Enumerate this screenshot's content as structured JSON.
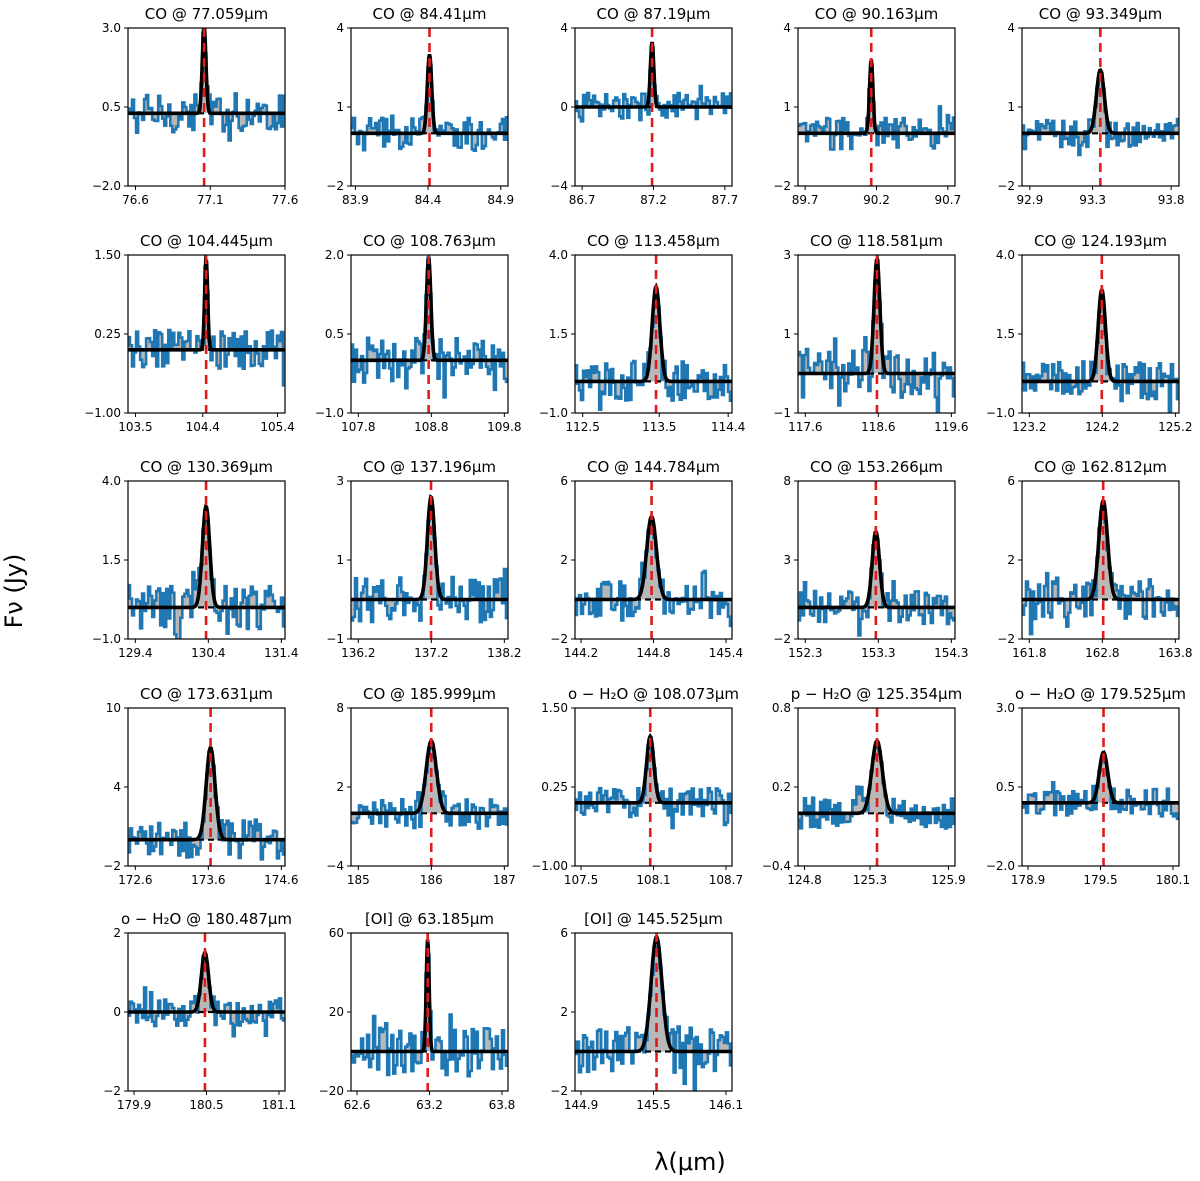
{
  "figure": {
    "ylabel": "Fν (Jy)",
    "xlabel": "λ(μm)"
  },
  "colors": {
    "spectrum": "#1f77b4",
    "fit": "#000000",
    "line_center": "#e31a1c",
    "continuum": "#000000",
    "fill": "#b8b8b8"
  },
  "chart_data": [
    {
      "type": "line",
      "title": "CO @ 77.059μm",
      "species": "CO",
      "center": 77.059,
      "xticks": [
        "76.6",
        "77.1",
        "77.6"
      ],
      "xlim": [
        76.55,
        77.6
      ],
      "yticks": [
        "3.0",
        "0.5",
        "−2.0"
      ],
      "ylim": [
        -2.0,
        3.0
      ],
      "baseline": 0.3,
      "peak": 2.8,
      "sigma": 0.012,
      "series": [
        {
          "values": []
        }
      ]
    },
    {
      "type": "line",
      "title": "CO @ 84.41μm",
      "species": "CO",
      "center": 84.41,
      "xticks": [
        "83.9",
        "84.4",
        "84.9"
      ],
      "xlim": [
        83.87,
        84.95
      ],
      "yticks": [
        "4",
        "1",
        "−2"
      ],
      "ylim": [
        -2,
        4
      ],
      "baseline": 0.0,
      "peak": 3.0,
      "sigma": 0.015,
      "series": [
        {
          "values": []
        }
      ]
    },
    {
      "type": "line",
      "title": "CO @ 87.19μm",
      "species": "CO",
      "center": 87.19,
      "xticks": [
        "86.7",
        "87.2",
        "87.7"
      ],
      "xlim": [
        86.65,
        87.75
      ],
      "yticks": [
        "4",
        "0",
        "−4"
      ],
      "ylim": [
        -4,
        4
      ],
      "baseline": 0.0,
      "peak": 3.3,
      "sigma": 0.012,
      "series": [
        {
          "values": []
        }
      ]
    },
    {
      "type": "line",
      "title": "CO @ 90.163μm",
      "species": "CO",
      "center": 90.163,
      "xticks": [
        "89.7",
        "90.2",
        "90.7"
      ],
      "xlim": [
        89.65,
        90.75
      ],
      "yticks": [
        "4",
        "1",
        "−2"
      ],
      "ylim": [
        -2,
        4
      ],
      "baseline": 0.0,
      "peak": 2.8,
      "sigma": 0.012,
      "series": [
        {
          "values": []
        }
      ]
    },
    {
      "type": "line",
      "title": "CO @ 93.349μm",
      "species": "CO",
      "center": 93.349,
      "xticks": [
        "92.9",
        "93.3",
        "93.8"
      ],
      "xlim": [
        92.85,
        93.85
      ],
      "yticks": [
        "4",
        "1",
        "−2"
      ],
      "ylim": [
        -2,
        4
      ],
      "baseline": 0.0,
      "peak": 2.4,
      "sigma": 0.025,
      "series": [
        {
          "values": []
        }
      ]
    },
    {
      "type": "line",
      "title": "CO @ 104.445μm",
      "species": "CO",
      "center": 104.445,
      "xticks": [
        "103.5",
        "104.4",
        "105.4"
      ],
      "xlim": [
        103.4,
        105.5
      ],
      "yticks": [
        "1.50",
        "0.25",
        "−1.00"
      ],
      "ylim": [
        -1.0,
        1.5
      ],
      "baseline": 0.0,
      "peak": 1.45,
      "sigma": 0.02,
      "series": [
        {
          "values": []
        }
      ]
    },
    {
      "type": "line",
      "title": "CO @ 108.763μm",
      "species": "CO",
      "center": 108.763,
      "xticks": [
        "107.8",
        "108.8",
        "109.8"
      ],
      "xlim": [
        107.7,
        109.85
      ],
      "yticks": [
        "2.0",
        "0.5",
        "−1.0"
      ],
      "ylim": [
        -1.0,
        2.0
      ],
      "baseline": 0.0,
      "peak": 1.95,
      "sigma": 0.03,
      "series": [
        {
          "values": []
        }
      ]
    },
    {
      "type": "line",
      "title": "CO @ 113.458μm",
      "species": "CO",
      "center": 113.458,
      "xticks": [
        "112.5",
        "113.5",
        "114.4"
      ],
      "xlim": [
        112.4,
        114.45
      ],
      "yticks": [
        "4.0",
        "1.5",
        "−1.0"
      ],
      "ylim": [
        -1.0,
        4.0
      ],
      "baseline": 0.0,
      "peak": 3.0,
      "sigma": 0.05,
      "series": [
        {
          "values": []
        }
      ]
    },
    {
      "type": "line",
      "title": "CO @ 118.581μm",
      "species": "CO",
      "center": 118.581,
      "xticks": [
        "117.6",
        "118.6",
        "119.6"
      ],
      "xlim": [
        117.5,
        119.65
      ],
      "yticks": [
        "3",
        "1",
        "−1"
      ],
      "ylim": [
        -1,
        3
      ],
      "baseline": 0.0,
      "peak": 2.9,
      "sigma": 0.04,
      "series": [
        {
          "values": []
        }
      ]
    },
    {
      "type": "line",
      "title": "CO @ 124.193μm",
      "species": "CO",
      "center": 124.193,
      "xticks": [
        "123.2",
        "124.2",
        "125.2"
      ],
      "xlim": [
        123.1,
        125.25
      ],
      "yticks": [
        "4.0",
        "1.5",
        "−1.0"
      ],
      "ylim": [
        -1.0,
        4.0
      ],
      "baseline": 0.0,
      "peak": 2.9,
      "sigma": 0.05,
      "series": [
        {
          "values": []
        }
      ]
    },
    {
      "type": "line",
      "title": "CO @ 130.369μm",
      "species": "CO",
      "center": 130.369,
      "xticks": [
        "129.4",
        "130.4",
        "131.4"
      ],
      "xlim": [
        129.3,
        131.45
      ],
      "yticks": [
        "4.0",
        "1.5",
        "−1.0"
      ],
      "ylim": [
        -1.0,
        4.0
      ],
      "baseline": 0.0,
      "peak": 3.2,
      "sigma": 0.05,
      "series": [
        {
          "values": []
        }
      ]
    },
    {
      "type": "line",
      "title": "CO @ 137.196μm",
      "species": "CO",
      "center": 137.196,
      "xticks": [
        "136.2",
        "137.2",
        "138.2"
      ],
      "xlim": [
        136.1,
        138.25
      ],
      "yticks": [
        "3",
        "1",
        "−1"
      ],
      "ylim": [
        -1,
        3
      ],
      "baseline": 0.0,
      "peak": 2.6,
      "sigma": 0.05,
      "series": [
        {
          "values": []
        }
      ]
    },
    {
      "type": "line",
      "title": "CO @ 144.784μm",
      "species": "CO",
      "center": 144.784,
      "xticks": [
        "144.2",
        "144.8",
        "145.4"
      ],
      "xlim": [
        144.15,
        145.45
      ],
      "yticks": [
        "6",
        "2",
        "−2"
      ],
      "ylim": [
        -2,
        6
      ],
      "baseline": 0.0,
      "peak": 4.2,
      "sigma": 0.04,
      "series": [
        {
          "values": []
        }
      ]
    },
    {
      "type": "line",
      "title": "CO @ 153.266μm",
      "species": "CO",
      "center": 153.266,
      "xticks": [
        "152.3",
        "153.3",
        "154.3"
      ],
      "xlim": [
        152.2,
        154.35
      ],
      "yticks": [
        "8",
        "3",
        "−2"
      ],
      "ylim": [
        -2,
        8
      ],
      "baseline": 0.0,
      "peak": 4.8,
      "sigma": 0.05,
      "series": [
        {
          "values": []
        }
      ]
    },
    {
      "type": "line",
      "title": "CO @ 162.812μm",
      "species": "CO",
      "center": 162.812,
      "xticks": [
        "161.8",
        "162.8",
        "163.8"
      ],
      "xlim": [
        161.7,
        163.85
      ],
      "yticks": [
        "6",
        "2",
        "−2"
      ],
      "ylim": [
        -2,
        6
      ],
      "baseline": 0.0,
      "peak": 5.0,
      "sigma": 0.06,
      "series": [
        {
          "values": []
        }
      ]
    },
    {
      "type": "line",
      "title": "CO @ 173.631μm",
      "species": "CO",
      "center": 173.631,
      "xticks": [
        "172.6",
        "173.6",
        "174.6"
      ],
      "xlim": [
        172.5,
        174.65
      ],
      "yticks": [
        "10",
        "4",
        "−2"
      ],
      "ylim": [
        -2,
        10
      ],
      "baseline": 0.0,
      "peak": 7.0,
      "sigma": 0.06,
      "series": [
        {
          "values": []
        }
      ]
    },
    {
      "type": "line",
      "title": "CO @ 185.999μm",
      "species": "CO",
      "center": 185.999,
      "xticks": [
        "185",
        "186",
        "187"
      ],
      "xlim": [
        184.9,
        187.05
      ],
      "yticks": [
        "8",
        "2",
        "−4"
      ],
      "ylim": [
        -4,
        8
      ],
      "baseline": 0.0,
      "peak": 5.5,
      "sigma": 0.07,
      "series": [
        {
          "values": []
        }
      ]
    },
    {
      "type": "line",
      "title": "o − H₂O @ 108.073μm",
      "species": "o-H2O",
      "center": 108.073,
      "xticks": [
        "107.5",
        "108.1",
        "108.7"
      ],
      "xlim": [
        107.45,
        108.75
      ],
      "yticks": [
        "1.50",
        "0.25",
        "−1.00"
      ],
      "ylim": [
        -1.0,
        1.5
      ],
      "baseline": 0.0,
      "peak": 1.05,
      "sigma": 0.03,
      "series": [
        {
          "values": []
        }
      ]
    },
    {
      "type": "line",
      "title": "p − H₂O @ 125.354μm",
      "species": "p-H2O",
      "center": 125.354,
      "xticks": [
        "124.8",
        "125.3",
        "125.9"
      ],
      "xlim": [
        124.75,
        125.95
      ],
      "yticks": [
        "0.8",
        "0.2",
        "−0.4"
      ],
      "ylim": [
        -0.4,
        0.8
      ],
      "baseline": 0.0,
      "peak": 0.55,
      "sigma": 0.04,
      "series": [
        {
          "values": []
        }
      ]
    },
    {
      "type": "line",
      "title": "o − H₂O @ 179.525μm",
      "species": "o-H2O",
      "center": 179.525,
      "xticks": [
        "178.9",
        "179.5",
        "180.1"
      ],
      "xlim": [
        178.85,
        180.15
      ],
      "yticks": [
        "3.0",
        "0.5",
        "−2.0"
      ],
      "ylim": [
        -2.0,
        3.0
      ],
      "baseline": 0.0,
      "peak": 1.6,
      "sigma": 0.035,
      "series": [
        {
          "values": []
        }
      ]
    },
    {
      "type": "line",
      "title": "o − H₂O @ 180.487μm",
      "species": "o-H2O",
      "center": 180.487,
      "xticks": [
        "179.9",
        "180.5",
        "181.1"
      ],
      "xlim": [
        179.85,
        181.15
      ],
      "yticks": [
        "2",
        "0",
        "−2"
      ],
      "ylim": [
        -2,
        2
      ],
      "baseline": 0.0,
      "peak": 1.5,
      "sigma": 0.03,
      "series": [
        {
          "values": []
        }
      ]
    },
    {
      "type": "line",
      "title": "[OI] @ 63.185μm",
      "species": "[OI]",
      "center": 63.185,
      "xticks": [
        "62.6",
        "63.2",
        "63.8"
      ],
      "xlim": [
        62.55,
        63.85
      ],
      "yticks": [
        "60",
        "20",
        "−20"
      ],
      "ylim": [
        -20,
        60
      ],
      "baseline": 0.0,
      "peak": 57,
      "sigma": 0.012,
      "series": [
        {
          "values": []
        }
      ]
    },
    {
      "type": "line",
      "title": "[OI] @ 145.525μm",
      "species": "[OI]",
      "center": 145.525,
      "xticks": [
        "144.9",
        "145.5",
        "146.1"
      ],
      "xlim": [
        144.85,
        146.15
      ],
      "yticks": [
        "6",
        "2",
        "−2"
      ],
      "ylim": [
        -2,
        6
      ],
      "baseline": 0.0,
      "peak": 5.8,
      "sigma": 0.045,
      "series": [
        {
          "values": []
        }
      ]
    }
  ]
}
